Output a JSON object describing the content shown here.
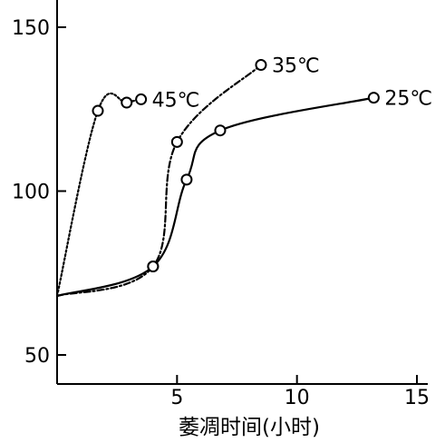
{
  "chart_data": {
    "type": "line",
    "title": "",
    "xlabel": "萎凋时间(小时)",
    "ylabel": "",
    "xlim": [
      0,
      15
    ],
    "ylim": [
      45,
      160
    ],
    "x_ticks": [
      5,
      10,
      15
    ],
    "x_tick_labels": [
      "5",
      "10",
      "15"
    ],
    "y_ticks": [
      50,
      100,
      150
    ],
    "y_tick_labels": [
      "50",
      "100",
      "150"
    ],
    "grid": false,
    "series": [
      {
        "name": "45℃",
        "line_style": "dotted",
        "points": [
          [
            0,
            68
          ],
          [
            1.7,
            124.5
          ],
          [
            2.9,
            127
          ],
          [
            3.5,
            128
          ]
        ],
        "markers": [
          [
            1.7,
            124.5
          ],
          [
            2.9,
            127
          ],
          [
            3.5,
            128
          ]
        ]
      },
      {
        "name": "35℃",
        "line_style": "dashdot",
        "points": [
          [
            0,
            68
          ],
          [
            4.0,
            77
          ],
          [
            5.0,
            115
          ],
          [
            8.5,
            138.5
          ]
        ],
        "markers": [
          [
            4.0,
            77
          ],
          [
            5.0,
            115
          ],
          [
            8.5,
            138.5
          ]
        ]
      },
      {
        "name": "25℃",
        "line_style": "solid",
        "points": [
          [
            0,
            68
          ],
          [
            4.0,
            77
          ],
          [
            5.4,
            103.5
          ],
          [
            6.8,
            118.5
          ],
          [
            13.2,
            128.5
          ]
        ],
        "markers": [
          [
            4.0,
            77
          ],
          [
            5.4,
            103.5
          ],
          [
            6.8,
            118.5
          ],
          [
            13.2,
            128.5
          ]
        ]
      }
    ]
  }
}
